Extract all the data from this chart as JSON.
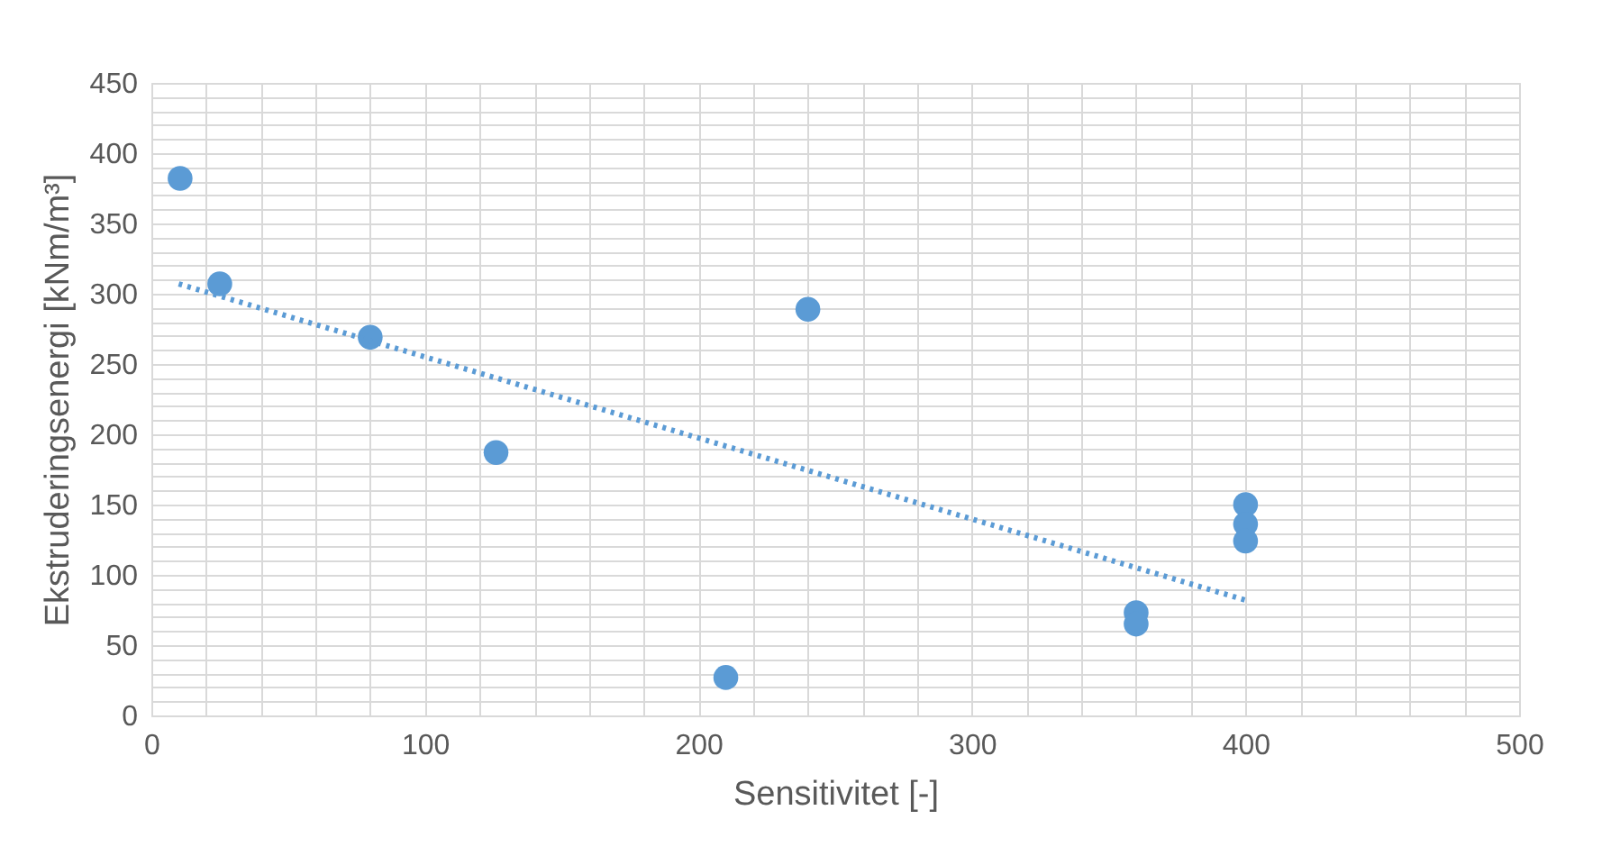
{
  "chart_data": {
    "type": "scatter",
    "xlabel": "Sensitivitet [-]",
    "ylabel": "Ekstruderingsenergi [kNm/m³]",
    "x": [
      10.5,
      25,
      80,
      126,
      210,
      240,
      360,
      360,
      400,
      400,
      400
    ],
    "series": [
      {
        "type": "scatter",
        "color": "#5b9bd5",
        "marker": "circle",
        "values": [
          382,
          307,
          269,
          187,
          27,
          289,
          73,
          65,
          150,
          136,
          124
        ]
      },
      {
        "type": "line",
        "color": "#5b9bd5",
        "line_style": "dotted",
        "marker": "none",
        "x": [
          10,
          400
        ],
        "values": [
          307,
          82
        ]
      }
    ],
    "xlim": [
      0,
      500
    ],
    "ylim": [
      0,
      450
    ],
    "xticks": [
      0,
      {
        "value": 20,
        "label": null
      },
      {
        "value": 40,
        "label": null
      },
      {
        "value": 60,
        "label": null
      },
      {
        "value": 80,
        "label": null
      },
      100,
      {
        "value": 120,
        "label": null
      },
      {
        "value": 140,
        "label": null
      },
      {
        "value": 160,
        "label": null
      },
      {
        "value": 180,
        "label": null
      },
      200,
      {
        "value": 220,
        "label": null
      },
      {
        "value": 240,
        "label": null
      },
      {
        "value": 260,
        "label": null
      },
      {
        "value": 280,
        "label": null
      },
      300,
      {
        "value": 320,
        "label": null
      },
      {
        "value": 340,
        "label": null
      },
      {
        "value": 360,
        "label": null
      },
      {
        "value": 380,
        "label": null
      },
      400,
      {
        "value": 420,
        "label": null
      },
      {
        "value": 440,
        "label": null
      },
      {
        "value": 460,
        "label": null
      },
      {
        "value": 480,
        "label": null
      },
      500
    ],
    "yticks": [
      0,
      {
        "value": 10,
        "label": null
      },
      {
        "value": 20,
        "label": null
      },
      {
        "value": 30,
        "label": null
      },
      {
        "value": 40,
        "label": null
      },
      50,
      {
        "value": 60,
        "label": null
      },
      {
        "value": 70,
        "label": null
      },
      {
        "value": 80,
        "label": null
      },
      {
        "value": 90,
        "label": null
      },
      100,
      {
        "value": 110,
        "label": null
      },
      {
        "value": 120,
        "label": null
      },
      {
        "value": 130,
        "label": null
      },
      {
        "value": 140,
        "label": null
      },
      150,
      {
        "value": 160,
        "label": null
      },
      {
        "value": 170,
        "label": null
      },
      {
        "value": 180,
        "label": null
      },
      {
        "value": 190,
        "label": null
      },
      200,
      {
        "value": 210,
        "label": null
      },
      {
        "value": 220,
        "label": null
      },
      {
        "value": 230,
        "label": null
      },
      {
        "value": 240,
        "label": null
      },
      250,
      {
        "value": 260,
        "label": null
      },
      {
        "value": 270,
        "label": null
      },
      {
        "value": 280,
        "label": null
      },
      {
        "value": 290,
        "label": null
      },
      300,
      {
        "value": 310,
        "label": null
      },
      {
        "value": 320,
        "label": null
      },
      {
        "value": 330,
        "label": null
      },
      {
        "value": 340,
        "label": null
      },
      350,
      {
        "value": 360,
        "label": null
      },
      {
        "value": 370,
        "label": null
      },
      {
        "value": 380,
        "label": null
      },
      {
        "value": 390,
        "label": null
      },
      400,
      {
        "value": 410,
        "label": null
      },
      {
        "value": 420,
        "label": null
      },
      {
        "value": 430,
        "label": null
      },
      {
        "value": 440,
        "label": null
      },
      450
    ],
    "grid": true
  }
}
